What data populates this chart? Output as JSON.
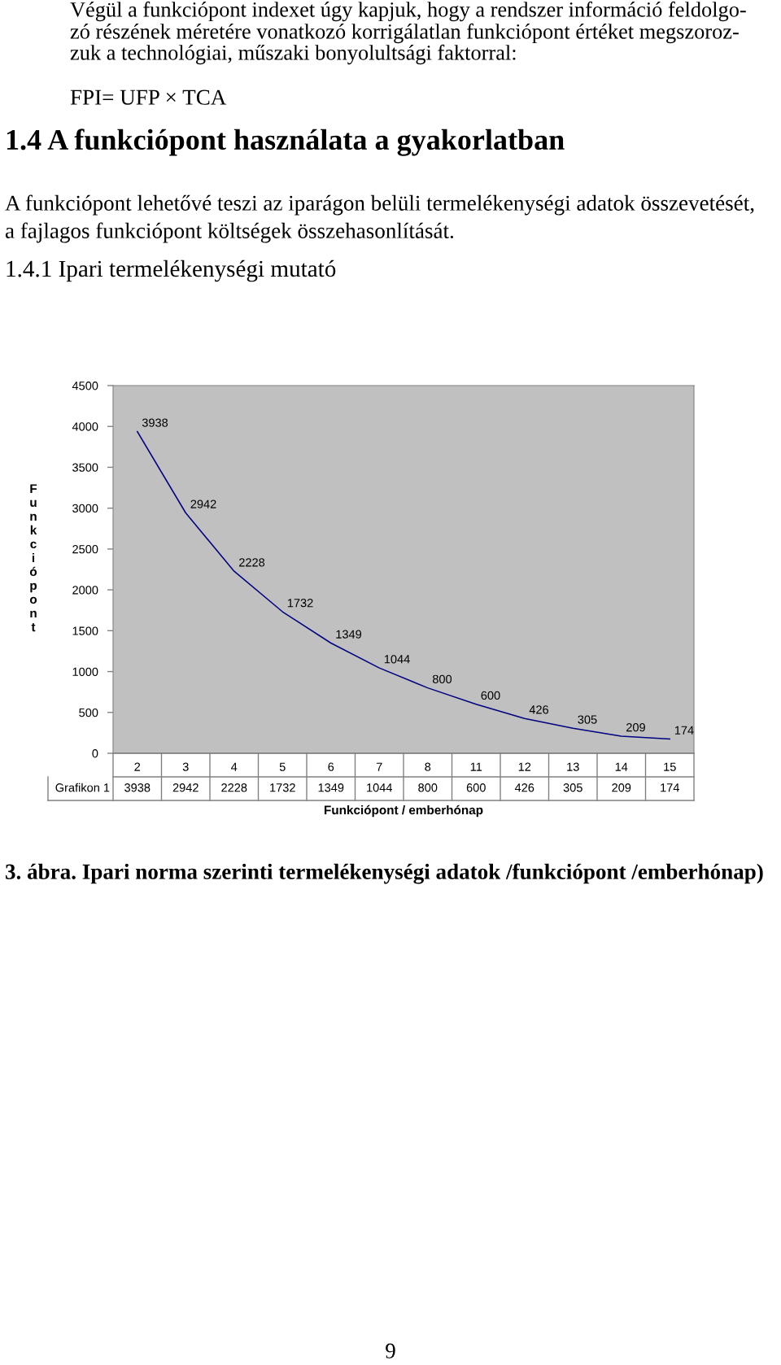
{
  "chart_data": [
    {
      "type": "line",
      "ylabel": "Funkciópont",
      "xlabel": "Funkciópont / emberhónap",
      "categories": [
        "2",
        "3",
        "4",
        "5",
        "6",
        "7",
        "8",
        "11",
        "12",
        "13",
        "14",
        "15"
      ],
      "series": [
        {
          "color": "#000080",
          "values": [
            3938,
            2942,
            2228,
            1732,
            1349,
            1044,
            800,
            600,
            426,
            305,
            209,
            174
          ],
          "value_labels": [
            "3938",
            "2942",
            "2228",
            "1732",
            "1349",
            "1044",
            "800",
            "600",
            "426",
            "305",
            "209",
            "174"
          ]
        }
      ],
      "ylim": [
        0,
        4500
      ],
      "yticks": [
        0,
        500,
        1000,
        1500,
        2000,
        2500,
        3000,
        3500,
        4000,
        4500
      ],
      "grid": false,
      "marker": "none",
      "line_style": "solid",
      "legend": false,
      "annotations": [
        "Végül a funkciópont indexet úgy kapjuk, hogy a rendszer információ feldolgo-\nzó részének méretére vonatkozó korrigálatlan funkciópont értéket megszoroz-\nzuk a technológiai, műszaki bonyolultsági faktorral:",
        "FPI= UFP × TCA",
        "1.4 A funkciópont használata a gyakorlatban",
        "A funkciópont lehetővé teszi az iparágon belüli termelékenységi adatok összevetését,\na fajlagos funkciópont költségek összehasonlítását.",
        "1.4.1 Ipari termelékenységi mutató",
        "3. ábra. Ipari norma szerinti termelékenységi adatok /funkciópont /emberhónap)",
        "9"
      ]
    },
    {
      "type": "other",
      "series": [
        {
          "name": "Grafikon 1",
          "values": [
            3938,
            2942,
            2228,
            1732,
            1349,
            1044,
            800,
            600,
            426,
            305,
            209,
            174
          ]
        }
      ],
      "data_labels": true
    }
  ]
}
